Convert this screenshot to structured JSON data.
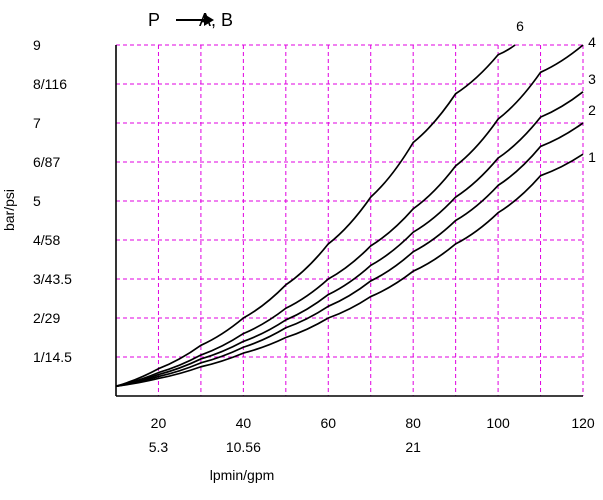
{
  "chart_data": {
    "type": "line",
    "title": "P → A, B",
    "title_parts": {
      "left": "P",
      "right": "A, B"
    },
    "ylabel": "bar/psi",
    "xlabel": "lpmin/gpm",
    "xlim": [
      10,
      120
    ],
    "ylim": [
      0,
      9
    ],
    "grid": true,
    "grid_color": "#e000e0",
    "line_color": "#000000",
    "x_ticks": [
      {
        "value": 20,
        "label": "20"
      },
      {
        "value": 40,
        "label": "40"
      },
      {
        "value": 60,
        "label": "60"
      },
      {
        "value": 80,
        "label": "80"
      },
      {
        "value": 100,
        "label": "100"
      },
      {
        "value": 120,
        "label": "120"
      }
    ],
    "x_secondary_ticks": [
      {
        "value": 20,
        "label": "5.3"
      },
      {
        "value": 40,
        "label": "10.56"
      },
      {
        "value": 80,
        "label": "21"
      }
    ],
    "y_ticks": [
      {
        "value": 1,
        "label": "1/14.5"
      },
      {
        "value": 2,
        "label": "2/29"
      },
      {
        "value": 3,
        "label": "3/43.5"
      },
      {
        "value": 4,
        "label": "4/58"
      },
      {
        "value": 5,
        "label": "5"
      },
      {
        "value": 6,
        "label": "6/87"
      },
      {
        "value": 7,
        "label": "7"
      },
      {
        "value": 8,
        "label": "8/116"
      },
      {
        "value": 9,
        "label": "9"
      }
    ],
    "series": [
      {
        "name": "1",
        "x": [
          10,
          20,
          30,
          40,
          50,
          60,
          70,
          80,
          90,
          100,
          110,
          120
        ],
        "y": [
          0.25,
          0.45,
          0.75,
          1.1,
          1.5,
          2.0,
          2.55,
          3.2,
          3.9,
          4.7,
          5.65,
          6.2
        ]
      },
      {
        "name": "2",
        "x": [
          10,
          20,
          30,
          40,
          50,
          60,
          70,
          80,
          90,
          100,
          110,
          120
        ],
        "y": [
          0.25,
          0.5,
          0.85,
          1.25,
          1.75,
          2.3,
          2.95,
          3.7,
          4.5,
          5.4,
          6.4,
          7.0
        ]
      },
      {
        "name": "3",
        "x": [
          10,
          20,
          30,
          40,
          50,
          60,
          70,
          80,
          90,
          100,
          110,
          120
        ],
        "y": [
          0.25,
          0.55,
          0.95,
          1.4,
          1.95,
          2.6,
          3.35,
          4.2,
          5.1,
          6.1,
          7.15,
          7.8
        ]
      },
      {
        "name": "4",
        "x": [
          10,
          20,
          30,
          40,
          50,
          60,
          70,
          80,
          90,
          100,
          110,
          120
        ],
        "y": [
          0.25,
          0.6,
          1.05,
          1.6,
          2.25,
          3.0,
          3.85,
          4.8,
          5.9,
          7.1,
          8.3,
          9.0
        ]
      },
      {
        "name": "6",
        "x": [
          10,
          20,
          30,
          40,
          50,
          60,
          70,
          80,
          90,
          100,
          104
        ],
        "y": [
          0.25,
          0.7,
          1.3,
          2.0,
          2.85,
          3.9,
          5.1,
          6.5,
          7.75,
          8.75,
          9.0
        ]
      }
    ]
  }
}
